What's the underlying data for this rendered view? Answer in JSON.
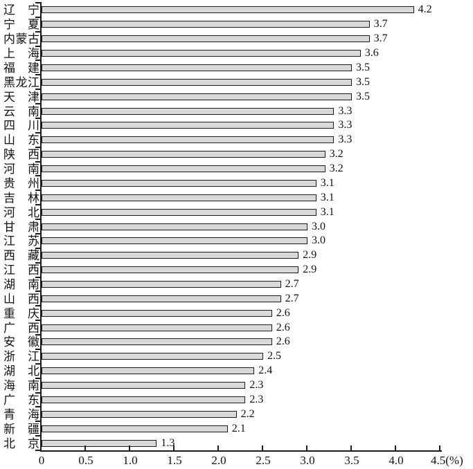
{
  "chart_data": {
    "type": "bar",
    "orientation": "horizontal",
    "title": "",
    "xlabel": "(%)",
    "ylabel": "",
    "xlim": [
      0,
      4.5
    ],
    "grid": false,
    "legend": null,
    "x_tick_values": [
      0,
      0.5,
      1.0,
      1.5,
      2.0,
      2.5,
      3.0,
      3.5,
      4.0,
      4.5
    ],
    "x_tick_labels": [
      "0",
      "0.5",
      "1.0",
      "1.5",
      "2.0",
      "2.5",
      "3.0",
      "3.5",
      "4.0",
      "4.5(%)"
    ],
    "categories": [
      "辽宁",
      "宁夏",
      "内蒙古",
      "上海",
      "福建",
      "黑龙江",
      "天津",
      "云南",
      "四川",
      "山东",
      "陕西",
      "河南",
      "贵州",
      "吉林",
      "河北",
      "甘肃",
      "江苏",
      "西藏",
      "江西",
      "湖南",
      "山西",
      "重庆",
      "广西",
      "安徽",
      "浙江",
      "湖北",
      "海南",
      "广东",
      "青海",
      "新疆",
      "北京"
    ],
    "values": [
      4.2,
      3.7,
      3.7,
      3.6,
      3.5,
      3.5,
      3.5,
      3.3,
      3.3,
      3.3,
      3.2,
      3.2,
      3.1,
      3.1,
      3.1,
      3.0,
      3.0,
      2.9,
      2.9,
      2.7,
      2.7,
      2.6,
      2.6,
      2.6,
      2.5,
      2.4,
      2.3,
      2.3,
      2.2,
      2.1,
      1.3
    ],
    "value_labels": [
      "4.2",
      "3.7",
      "3.7",
      "3.6",
      "3.5",
      "3.5",
      "3.5",
      "3.3",
      "3.3",
      "3.3",
      "3.2",
      "3.2",
      "3.1",
      "3.1",
      "3.1",
      "3.0",
      "3.0",
      "2.9",
      "2.9",
      "2.7",
      "2.7",
      "2.6",
      "2.6",
      "2.6",
      "2.5",
      "2.4",
      "2.3",
      "2.3",
      "2.2",
      "2.1",
      "1.3"
    ],
    "bar_fill": "#d9d9d9",
    "bar_border": "#1a1a1a",
    "axis_color": "#1a1a1a"
  }
}
